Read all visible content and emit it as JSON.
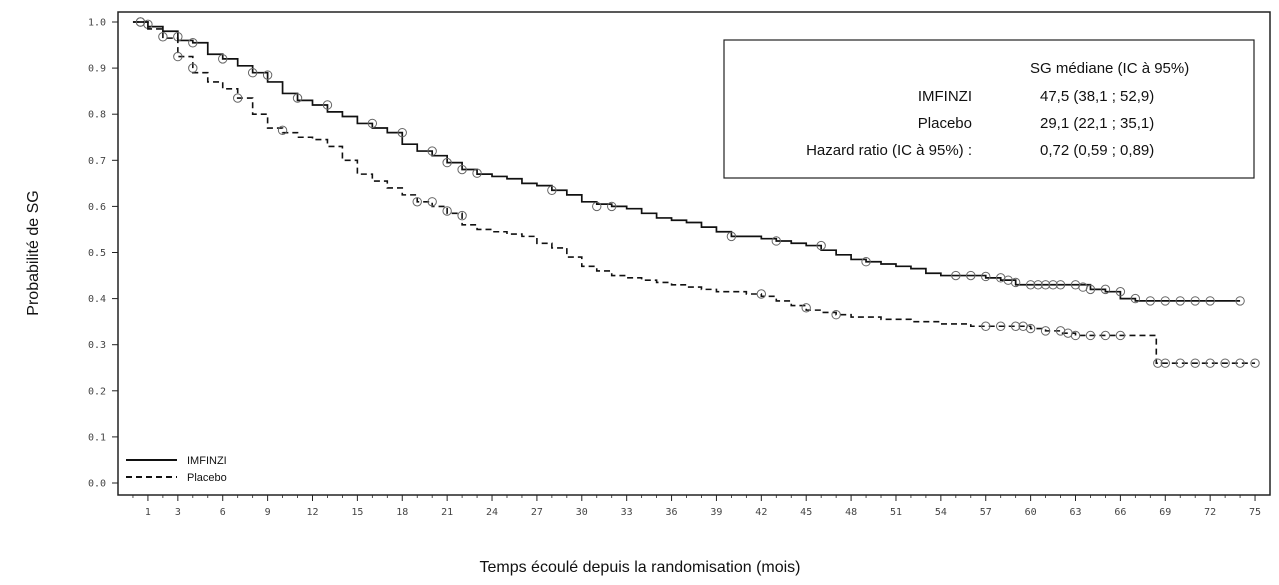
{
  "chart_data": {
    "type": "line",
    "xlabel": "Temps écoulé depuis la randomisation (mois)",
    "ylabel": "Probabilité de SG",
    "xlim": [
      -1,
      76
    ],
    "ylim": [
      0,
      1.0
    ],
    "x_ticks": [
      1,
      3,
      6,
      9,
      12,
      15,
      18,
      21,
      24,
      27,
      30,
      33,
      36,
      39,
      42,
      45,
      48,
      51,
      54,
      57,
      60,
      63,
      66,
      69,
      72,
      75
    ],
    "x_tick_labels": [
      "1",
      "3",
      "6",
      "9",
      "12",
      "15",
      "18",
      "21",
      "24",
      "27",
      "30",
      "33",
      "36",
      "39",
      "42",
      "45",
      "48",
      "51",
      "54",
      "57",
      "60",
      "63",
      "66",
      "69",
      "72",
      "75"
    ],
    "y_ticks": [
      0.0,
      0.1,
      0.2,
      0.3,
      0.4,
      0.5,
      0.6,
      0.7,
      0.8,
      0.9,
      1.0
    ],
    "y_tick_labels": [
      "0.0",
      "0.1",
      "0.2",
      "0.3",
      "0.4",
      "0.5",
      "0.6",
      "0.7",
      "0.8",
      "0.9",
      "1.0"
    ],
    "grid": false,
    "legend_position": "bottom-left",
    "series": [
      {
        "name": "IMFINZI",
        "style": "solid",
        "color": "#111111",
        "points": [
          [
            0,
            1.0
          ],
          [
            1,
            0.99
          ],
          [
            2,
            0.98
          ],
          [
            3,
            0.96
          ],
          [
            4,
            0.955
          ],
          [
            5,
            0.93
          ],
          [
            6,
            0.92
          ],
          [
            7,
            0.905
          ],
          [
            8,
            0.89
          ],
          [
            9,
            0.87
          ],
          [
            10,
            0.845
          ],
          [
            11,
            0.83
          ],
          [
            12,
            0.82
          ],
          [
            13,
            0.805
          ],
          [
            14,
            0.795
          ],
          [
            15,
            0.78
          ],
          [
            16,
            0.77
          ],
          [
            17,
            0.76
          ],
          [
            18,
            0.735
          ],
          [
            19,
            0.72
          ],
          [
            20,
            0.71
          ],
          [
            21,
            0.695
          ],
          [
            22,
            0.68
          ],
          [
            23,
            0.67
          ],
          [
            24,
            0.665
          ],
          [
            25,
            0.66
          ],
          [
            26,
            0.65
          ],
          [
            27,
            0.645
          ],
          [
            28,
            0.635
          ],
          [
            29,
            0.625
          ],
          [
            30,
            0.61
          ],
          [
            31,
            0.605
          ],
          [
            32,
            0.6
          ],
          [
            33,
            0.595
          ],
          [
            34,
            0.585
          ],
          [
            35,
            0.575
          ],
          [
            36,
            0.57
          ],
          [
            37,
            0.565
          ],
          [
            38,
            0.555
          ],
          [
            39,
            0.545
          ],
          [
            40,
            0.535
          ],
          [
            41,
            0.535
          ],
          [
            42,
            0.53
          ],
          [
            43,
            0.525
          ],
          [
            44,
            0.52
          ],
          [
            45,
            0.515
          ],
          [
            46,
            0.505
          ],
          [
            47,
            0.495
          ],
          [
            48,
            0.485
          ],
          [
            49,
            0.48
          ],
          [
            50,
            0.475
          ],
          [
            51,
            0.47
          ],
          [
            52,
            0.465
          ],
          [
            53,
            0.455
          ],
          [
            54,
            0.45
          ],
          [
            55,
            0.45
          ],
          [
            56,
            0.45
          ],
          [
            57,
            0.445
          ],
          [
            58,
            0.44
          ],
          [
            59,
            0.43
          ],
          [
            60,
            0.43
          ],
          [
            61,
            0.43
          ],
          [
            62,
            0.43
          ],
          [
            63,
            0.43
          ],
          [
            64,
            0.42
          ],
          [
            65,
            0.415
          ],
          [
            66,
            0.4
          ],
          [
            67,
            0.395
          ],
          [
            68,
            0.395
          ],
          [
            69,
            0.395
          ],
          [
            70,
            0.395
          ],
          [
            71,
            0.395
          ],
          [
            72,
            0.395
          ],
          [
            73,
            0.395
          ],
          [
            74,
            0.395
          ]
        ],
        "censored": [
          [
            0.5,
            1.0
          ],
          [
            1,
            0.995
          ],
          [
            3,
            0.968
          ],
          [
            4,
            0.955
          ],
          [
            6,
            0.92
          ],
          [
            8,
            0.89
          ],
          [
            9,
            0.885
          ],
          [
            11,
            0.835
          ],
          [
            13,
            0.82
          ],
          [
            16,
            0.78
          ],
          [
            18,
            0.76
          ],
          [
            20,
            0.72
          ],
          [
            21,
            0.695
          ],
          [
            22,
            0.68
          ],
          [
            23,
            0.672
          ],
          [
            28,
            0.635
          ],
          [
            31,
            0.6
          ],
          [
            32,
            0.6
          ],
          [
            40,
            0.535
          ],
          [
            43,
            0.525
          ],
          [
            46,
            0.515
          ],
          [
            49,
            0.48
          ],
          [
            55,
            0.45
          ],
          [
            56,
            0.45
          ],
          [
            57,
            0.448
          ],
          [
            58,
            0.445
          ],
          [
            58.5,
            0.44
          ],
          [
            59,
            0.435
          ],
          [
            60,
            0.43
          ],
          [
            60.5,
            0.43
          ],
          [
            61,
            0.43
          ],
          [
            61.5,
            0.43
          ],
          [
            62,
            0.43
          ],
          [
            63,
            0.43
          ],
          [
            63.5,
            0.425
          ],
          [
            64,
            0.42
          ],
          [
            65,
            0.42
          ],
          [
            66,
            0.415
          ],
          [
            67,
            0.4
          ],
          [
            68,
            0.395
          ],
          [
            69,
            0.395
          ],
          [
            70,
            0.395
          ],
          [
            71,
            0.395
          ],
          [
            72,
            0.395
          ],
          [
            74,
            0.395
          ]
        ]
      },
      {
        "name": "Placebo",
        "style": "dashed",
        "color": "#111111",
        "points": [
          [
            0,
            1.0
          ],
          [
            1,
            0.985
          ],
          [
            2,
            0.965
          ],
          [
            3,
            0.925
          ],
          [
            4,
            0.89
          ],
          [
            5,
            0.87
          ],
          [
            6,
            0.855
          ],
          [
            7,
            0.835
          ],
          [
            8,
            0.8
          ],
          [
            9,
            0.77
          ],
          [
            10,
            0.76
          ],
          [
            11,
            0.75
          ],
          [
            12,
            0.745
          ],
          [
            13,
            0.73
          ],
          [
            14,
            0.7
          ],
          [
            15,
            0.67
          ],
          [
            16,
            0.655
          ],
          [
            17,
            0.64
          ],
          [
            18,
            0.625
          ],
          [
            19,
            0.61
          ],
          [
            20,
            0.6
          ],
          [
            21,
            0.585
          ],
          [
            22,
            0.56
          ],
          [
            23,
            0.55
          ],
          [
            24,
            0.545
          ],
          [
            25,
            0.54
          ],
          [
            26,
            0.535
          ],
          [
            27,
            0.52
          ],
          [
            28,
            0.51
          ],
          [
            29,
            0.49
          ],
          [
            30,
            0.47
          ],
          [
            31,
            0.46
          ],
          [
            32,
            0.45
          ],
          [
            33,
            0.445
          ],
          [
            34,
            0.44
          ],
          [
            35,
            0.435
          ],
          [
            36,
            0.43
          ],
          [
            37,
            0.425
          ],
          [
            38,
            0.42
          ],
          [
            39,
            0.415
          ],
          [
            40,
            0.415
          ],
          [
            41,
            0.41
          ],
          [
            42,
            0.405
          ],
          [
            43,
            0.395
          ],
          [
            44,
            0.385
          ],
          [
            45,
            0.375
          ],
          [
            46,
            0.37
          ],
          [
            47,
            0.365
          ],
          [
            48,
            0.36
          ],
          [
            49,
            0.36
          ],
          [
            50,
            0.355
          ],
          [
            51,
            0.355
          ],
          [
            52,
            0.35
          ],
          [
            53,
            0.35
          ],
          [
            54,
            0.345
          ],
          [
            55,
            0.345
          ],
          [
            56,
            0.34
          ],
          [
            57,
            0.34
          ],
          [
            58,
            0.34
          ],
          [
            59,
            0.34
          ],
          [
            60,
            0.335
          ],
          [
            61,
            0.33
          ],
          [
            62,
            0.325
          ],
          [
            63,
            0.32
          ],
          [
            64,
            0.32
          ],
          [
            65,
            0.32
          ],
          [
            66,
            0.32
          ],
          [
            67,
            0.32
          ],
          [
            68,
            0.32
          ],
          [
            68.4,
            0.26
          ],
          [
            69,
            0.26
          ],
          [
            70,
            0.26
          ],
          [
            71,
            0.26
          ],
          [
            72,
            0.26
          ],
          [
            73,
            0.26
          ],
          [
            74,
            0.26
          ],
          [
            75,
            0.26
          ]
        ],
        "censored": [
          [
            0.5,
            1.0
          ],
          [
            2,
            0.968
          ],
          [
            3,
            0.925
          ],
          [
            4,
            0.9
          ],
          [
            7,
            0.835
          ],
          [
            10,
            0.765
          ],
          [
            19,
            0.61
          ],
          [
            20,
            0.61
          ],
          [
            21,
            0.59
          ],
          [
            22,
            0.58
          ],
          [
            42,
            0.41
          ],
          [
            45,
            0.38
          ],
          [
            47,
            0.365
          ],
          [
            57,
            0.34
          ],
          [
            58,
            0.34
          ],
          [
            59,
            0.34
          ],
          [
            59.5,
            0.34
          ],
          [
            60,
            0.335
          ],
          [
            61,
            0.33
          ],
          [
            62,
            0.33
          ],
          [
            62.5,
            0.325
          ],
          [
            63,
            0.32
          ],
          [
            64,
            0.32
          ],
          [
            65,
            0.32
          ],
          [
            66,
            0.32
          ],
          [
            68.5,
            0.26
          ],
          [
            69,
            0.26
          ],
          [
            70,
            0.26
          ],
          [
            71,
            0.26
          ],
          [
            72,
            0.26
          ],
          [
            73,
            0.26
          ],
          [
            74,
            0.26
          ],
          [
            75,
            0.26
          ]
        ]
      }
    ],
    "legend": [
      {
        "label": "IMFINZI",
        "style": "solid"
      },
      {
        "label": "Placebo",
        "style": "dashed"
      }
    ],
    "summary_box": {
      "header": "SG médiane (IC à 95%)",
      "rows": [
        {
          "label": "IMFINZI",
          "value": "47,5 (38,1 ; 52,9)"
        },
        {
          "label": "Placebo",
          "value": "29,1 (22,1 ; 35,1)"
        },
        {
          "label": "Hazard ratio (IC à 95%) :",
          "value": "0,72 (0,59 ; 0,89)"
        }
      ]
    }
  }
}
